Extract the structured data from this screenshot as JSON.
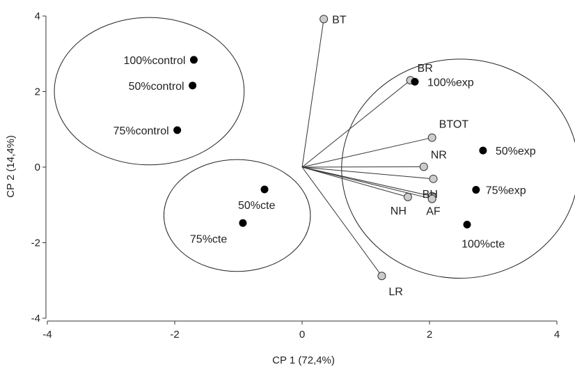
{
  "chart_data": {
    "type": "scatter",
    "subtype": "pca-biplot",
    "title": "",
    "xlabel": "CP 1 (72,4%)",
    "ylabel": "CP 2 (14,4%)",
    "xlim": [
      -4,
      4
    ],
    "ylim": [
      -4,
      4
    ],
    "x_ticks": [
      -4,
      -2,
      0,
      2,
      4
    ],
    "y_ticks": [
      -4,
      -2,
      0,
      2,
      4
    ],
    "grid": false,
    "legend": "none",
    "scores": [
      {
        "label": "100%control",
        "x": -1.7,
        "y": 2.84
      },
      {
        "label": "50%control",
        "x": -1.72,
        "y": 2.16
      },
      {
        "label": "75%control",
        "x": -1.96,
        "y": 0.98
      },
      {
        "label": "100%exp",
        "x": 1.77,
        "y": 2.26
      },
      {
        "label": "50%exp",
        "x": 2.84,
        "y": 0.44
      },
      {
        "label": "75%exp",
        "x": 2.73,
        "y": -0.6
      },
      {
        "label": "100%cte",
        "x": 2.59,
        "y": -1.52
      },
      {
        "label": "50%cte",
        "x": -0.59,
        "y": -0.59
      },
      {
        "label": "75%cte",
        "x": -0.93,
        "y": -1.48
      }
    ],
    "loadings": [
      {
        "label": "BT",
        "x": 0.34,
        "y": 3.92
      },
      {
        "label": "BR",
        "x": 1.7,
        "y": 2.3
      },
      {
        "label": "BTOT",
        "x": 2.04,
        "y": 0.78
      },
      {
        "label": "NR",
        "x": 1.91,
        "y": 0.01
      },
      {
        "label": "",
        "x": 2.06,
        "y": -0.31
      },
      {
        "label": "BH",
        "x": 2.04,
        "y": -0.77
      },
      {
        "label": "AF",
        "x": 2.04,
        "y": -0.84
      },
      {
        "label": "NH",
        "x": 1.66,
        "y": -0.79
      },
      {
        "label": "LR",
        "x": 1.25,
        "y": -2.88
      }
    ],
    "groups": [
      {
        "cx": -2.4,
        "cy": 2.01,
        "rx": 1.49,
        "ry": 1.95
      },
      {
        "cx": -1.02,
        "cy": -1.28,
        "rx": 1.15,
        "ry": 1.48
      },
      {
        "cx": 2.48,
        "cy": -0.04,
        "rx": 1.86,
        "ry": 2.9
      }
    ],
    "colors": {
      "score_point": "#000000",
      "loading_point": "#cccccc",
      "line": "#333333"
    }
  }
}
